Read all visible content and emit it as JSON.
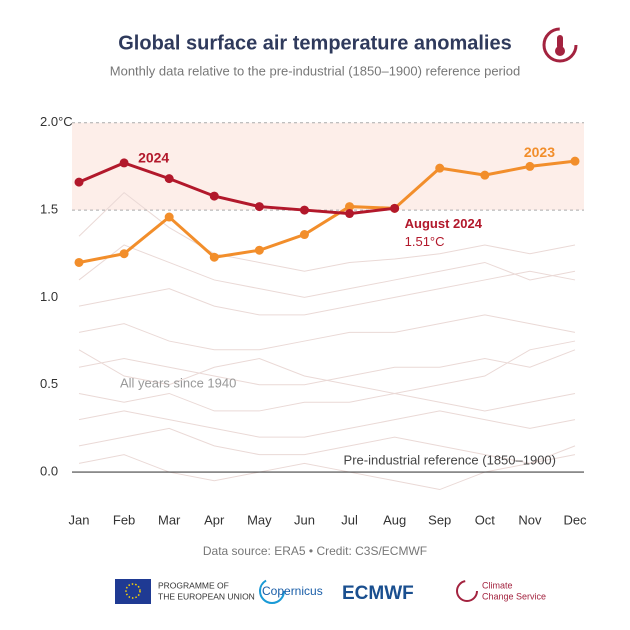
{
  "chart_data": {
    "type": "line",
    "title": "Global surface air temperature anomalies",
    "subtitle": "Monthly data relative to the pre-industrial (1850–1900) reference period",
    "categories": [
      "Jan",
      "Feb",
      "Mar",
      "Apr",
      "May",
      "Jun",
      "Jul",
      "Aug",
      "Sep",
      "Oct",
      "Nov",
      "Dec"
    ],
    "series": [
      {
        "name": "2023",
        "color": "#f28e2b",
        "values": [
          1.2,
          1.25,
          1.46,
          1.23,
          1.27,
          1.36,
          1.52,
          1.51,
          1.74,
          1.7,
          1.75,
          1.78
        ]
      },
      {
        "name": "2024",
        "color": "#b2182b",
        "values": [
          1.66,
          1.77,
          1.68,
          1.58,
          1.52,
          1.5,
          1.48,
          1.51,
          null,
          null,
          null,
          null
        ]
      }
    ],
    "background_series": [
      [
        1.35,
        1.6,
        1.4,
        1.25,
        1.2,
        1.15,
        1.2,
        1.22,
        1.25,
        1.3,
        1.25,
        1.3
      ],
      [
        1.1,
        1.3,
        1.2,
        1.1,
        1.05,
        1.0,
        1.05,
        1.1,
        1.15,
        1.2,
        1.1,
        1.15
      ],
      [
        0.95,
        1.0,
        1.05,
        0.95,
        0.9,
        0.9,
        0.95,
        1.0,
        1.05,
        1.1,
        1.15,
        1.1
      ],
      [
        0.8,
        0.85,
        0.75,
        0.7,
        0.7,
        0.75,
        0.8,
        0.8,
        0.85,
        0.9,
        0.85,
        0.8
      ],
      [
        0.6,
        0.65,
        0.6,
        0.55,
        0.5,
        0.5,
        0.55,
        0.6,
        0.6,
        0.65,
        0.6,
        0.7
      ],
      [
        0.45,
        0.4,
        0.45,
        0.35,
        0.35,
        0.4,
        0.4,
        0.45,
        0.4,
        0.35,
        0.4,
        0.45
      ],
      [
        0.3,
        0.35,
        0.3,
        0.25,
        0.2,
        0.2,
        0.25,
        0.3,
        0.35,
        0.3,
        0.25,
        0.3
      ],
      [
        0.15,
        0.2,
        0.25,
        0.15,
        0.1,
        0.1,
        0.15,
        0.2,
        0.15,
        0.1,
        0.05,
        0.15
      ],
      [
        0.05,
        0.1,
        0.0,
        -0.05,
        0.0,
        0.05,
        0.0,
        -0.05,
        -0.1,
        0.0,
        0.05,
        0.1
      ],
      [
        0.7,
        0.55,
        0.5,
        0.6,
        0.65,
        0.55,
        0.5,
        0.45,
        0.5,
        0.55,
        0.7,
        0.75
      ]
    ],
    "background_color": "#ead9d6",
    "ylim": [
      -0.2,
      2.05
    ],
    "yticks": [
      {
        "value": 0,
        "label": "0.0"
      },
      0.5,
      {
        "value": 1,
        "label": "1.0"
      },
      1.5,
      {
        "value": 2,
        "label": "2.0°C"
      }
    ],
    "highlight_band": [
      1.5,
      2.0
    ],
    "reference_line": 0,
    "annotations": {
      "label_2024": "2024",
      "label_2023": "2023",
      "august": "August 2024",
      "august_value": "1.51°C",
      "all_years": "All years since 1940",
      "reference": "Pre-industrial reference (1850–1900)"
    },
    "source": "Data source: ERA5 • Credit: C3S/ECMWF"
  },
  "footer": {
    "eu": [
      "PROGRAMME OF",
      "THE EUROPEAN UNION"
    ],
    "copernicus": "Copernicus",
    "ecmwf": "ECMWF",
    "c3s": [
      "Climate",
      "Change Service"
    ]
  }
}
